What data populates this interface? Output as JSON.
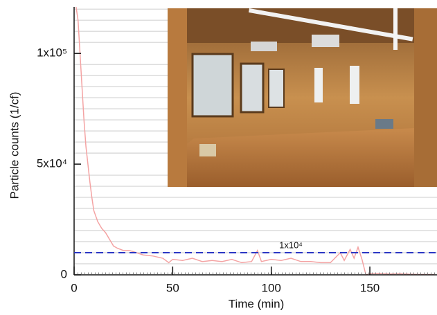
{
  "chart_data": {
    "type": "line",
    "x_label": "Time (min)",
    "y_label": "Particle counts (1/cf)",
    "x": [
      1,
      2,
      3,
      4,
      5,
      6,
      7,
      8,
      9,
      10,
      12,
      14,
      16,
      18,
      20,
      22,
      25,
      28,
      30,
      35,
      40,
      45,
      48,
      50,
      55,
      60,
      65,
      70,
      75,
      80,
      85,
      90,
      93,
      95,
      100,
      105,
      110,
      115,
      120,
      125,
      130,
      135,
      137,
      140,
      142,
      144,
      146,
      148,
      150,
      155,
      160,
      165,
      170,
      175,
      180,
      183
    ],
    "series": [
      {
        "color": "#f4a3a3",
        "values": [
          121000,
          115000,
          100000,
          85000,
          70000,
          58000,
          50000,
          42000,
          35000,
          29000,
          24000,
          21000,
          19000,
          16000,
          13000,
          12000,
          11000,
          11000,
          10500,
          9000,
          8500,
          7500,
          5500,
          7000,
          6500,
          7500,
          6000,
          6500,
          6000,
          7000,
          5500,
          6000,
          11000,
          6000,
          7000,
          6500,
          7500,
          6000,
          6000,
          5500,
          5500,
          10000,
          6500,
          11500,
          7500,
          12500,
          7000,
          0,
          500,
          600,
          400,
          500,
          300,
          200,
          200,
          100
        ]
      }
    ],
    "xlim": [
      0,
      183
    ],
    "ylim": [
      0,
      121000
    ],
    "xticks": [
      0,
      50,
      100,
      150
    ],
    "yticks": [
      0,
      {
        "value": 50000,
        "label": "5x10⁴"
      },
      {
        "value": 100000,
        "label": "1x10⁵"
      }
    ],
    "y_minor_ticks": [
      5000,
      10000,
      15000,
      20000,
      25000,
      30000,
      35000,
      40000,
      45000,
      55000,
      60000,
      65000,
      70000,
      75000,
      80000,
      85000,
      90000,
      95000,
      105000,
      110000,
      115000,
      120000
    ],
    "grid": true,
    "reference_lines": [
      {
        "value": 10000,
        "label": "1x10⁴",
        "color": "#2a36c4"
      }
    ]
  }
}
